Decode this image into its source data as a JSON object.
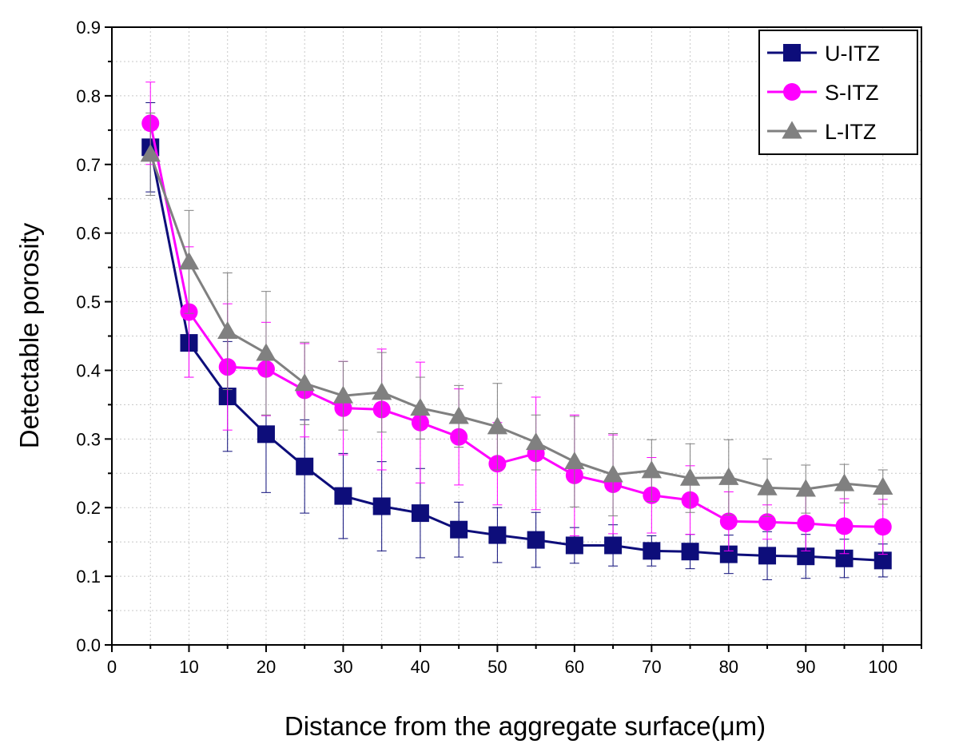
{
  "chart_data": {
    "type": "line",
    "title": "",
    "xlabel": "Distance from the aggregate surface(μm)",
    "ylabel": "Detectable porosity",
    "xlim": [
      0,
      105
    ],
    "ylim": [
      0.0,
      0.9
    ],
    "x_ticks": [
      0,
      10,
      20,
      30,
      40,
      50,
      60,
      70,
      80,
      90,
      100
    ],
    "y_ticks": [
      0.0,
      0.1,
      0.2,
      0.3,
      0.4,
      0.5,
      0.6,
      0.7,
      0.8,
      0.9
    ],
    "grid": true,
    "legend_position": "top-right",
    "x": [
      5,
      10,
      15,
      20,
      25,
      30,
      35,
      40,
      45,
      50,
      55,
      60,
      65,
      70,
      75,
      80,
      85,
      90,
      95,
      100
    ],
    "series": [
      {
        "name": "U-ITZ",
        "color": "#0d0d7a",
        "marker": "square",
        "values": [
          0.725,
          0.44,
          0.362,
          0.307,
          0.26,
          0.217,
          0.202,
          0.192,
          0.168,
          0.16,
          0.153,
          0.145,
          0.145,
          0.137,
          0.136,
          0.132,
          0.13,
          0.129,
          0.126,
          0.123
        ],
        "errors": [
          0.065,
          0.05,
          0.08,
          0.085,
          0.068,
          0.062,
          0.065,
          0.065,
          0.04,
          0.04,
          0.04,
          0.026,
          0.03,
          0.022,
          0.025,
          0.028,
          0.035,
          0.032,
          0.028,
          0.024
        ]
      },
      {
        "name": "S-ITZ",
        "color": "#ff00ff",
        "marker": "circle",
        "values": [
          0.76,
          0.485,
          0.405,
          0.402,
          0.371,
          0.345,
          0.343,
          0.324,
          0.303,
          0.264,
          0.279,
          0.247,
          0.234,
          0.218,
          0.211,
          0.18,
          0.179,
          0.177,
          0.173,
          0.172
        ],
        "errors": [
          0.06,
          0.095,
          0.092,
          0.068,
          0.068,
          0.068,
          0.088,
          0.088,
          0.07,
          0.06,
          0.082,
          0.088,
          0.072,
          0.055,
          0.05,
          0.043,
          0.025,
          0.04,
          0.04,
          0.04
        ]
      },
      {
        "name": "L-ITZ",
        "color": "#808080",
        "marker": "triangle",
        "values": [
          0.715,
          0.558,
          0.457,
          0.425,
          0.381,
          0.363,
          0.368,
          0.345,
          0.333,
          0.318,
          0.295,
          0.267,
          0.248,
          0.254,
          0.243,
          0.244,
          0.229,
          0.227,
          0.235,
          0.23
        ],
        "errors": [
          0.06,
          0.075,
          0.085,
          0.09,
          0.06,
          0.05,
          0.058,
          0.045,
          0.045,
          0.063,
          0.04,
          0.066,
          0.06,
          0.045,
          0.05,
          0.055,
          0.042,
          0.035,
          0.028,
          0.025
        ]
      }
    ]
  }
}
